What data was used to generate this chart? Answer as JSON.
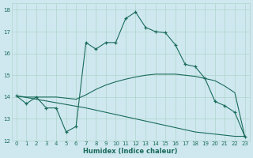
{
  "xlabel": "Humidex (Indice chaleur)",
  "xlim": [
    -0.5,
    23.5
  ],
  "ylim": [
    12,
    18.3
  ],
  "yticks": [
    12,
    13,
    14,
    15,
    16,
    17,
    18
  ],
  "xticks": [
    0,
    1,
    2,
    3,
    4,
    5,
    6,
    7,
    8,
    9,
    10,
    11,
    12,
    13,
    14,
    15,
    16,
    17,
    18,
    19,
    20,
    21,
    22,
    23
  ],
  "background_color": "#cfe8f0",
  "grid_color": "#b0d4c8",
  "line_color": "#1a6b5a",
  "lines": [
    {
      "x": [
        0,
        1,
        2,
        3,
        4,
        5,
        6,
        7,
        8,
        9,
        10,
        11,
        12,
        13,
        14,
        15,
        16,
        17,
        18,
        19,
        20,
        21,
        22,
        23
      ],
      "y": [
        14.05,
        13.7,
        14.0,
        13.5,
        13.5,
        12.4,
        12.65,
        16.5,
        16.2,
        16.5,
        16.5,
        17.6,
        17.9,
        17.2,
        17.0,
        16.95,
        16.4,
        15.5,
        15.4,
        14.85,
        13.8,
        13.6,
        13.3,
        12.2
      ],
      "has_markers": true
    },
    {
      "x": [
        0,
        1,
        2,
        3,
        4,
        5,
        6,
        7,
        8,
        9,
        10,
        11,
        12,
        13,
        14,
        15,
        16,
        17,
        18,
        19,
        20,
        21,
        22,
        23
      ],
      "y": [
        14.05,
        14.0,
        14.0,
        14.0,
        14.0,
        13.95,
        13.9,
        14.1,
        14.35,
        14.55,
        14.7,
        14.82,
        14.92,
        15.0,
        15.05,
        15.05,
        15.05,
        15.0,
        14.95,
        14.85,
        14.75,
        14.5,
        14.2,
        12.2
      ],
      "has_markers": false
    },
    {
      "x": [
        0,
        1,
        2,
        3,
        4,
        5,
        6,
        7,
        8,
        9,
        10,
        11,
        12,
        13,
        14,
        15,
        16,
        17,
        18,
        19,
        20,
        21,
        22,
        23
      ],
      "y": [
        14.05,
        13.98,
        13.9,
        13.82,
        13.74,
        13.66,
        13.58,
        13.5,
        13.4,
        13.3,
        13.2,
        13.1,
        13.0,
        12.9,
        12.8,
        12.7,
        12.6,
        12.5,
        12.4,
        12.35,
        12.3,
        12.25,
        12.2,
        12.2
      ],
      "has_markers": false
    }
  ]
}
